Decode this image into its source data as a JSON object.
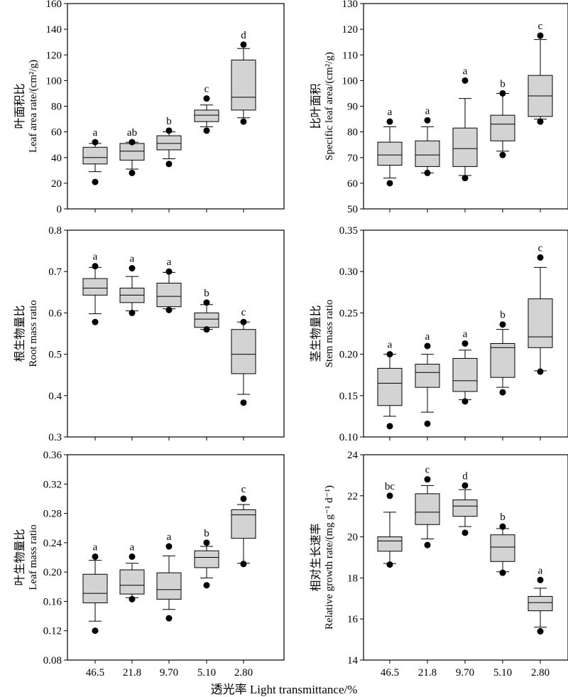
{
  "figure": {
    "x_label": "透光率 Light transmittance/%",
    "categories": [
      "46.5",
      "21.8",
      "9.70",
      "5.10",
      "2.80"
    ]
  },
  "chart_data": [
    {
      "type": "box",
      "id": "leaf-area-ratio",
      "ylabel_cn": "叶面积比",
      "ylabel_en": "Leaf area rate/(cm²/g)",
      "ylim": [
        0,
        160
      ],
      "yticks": [
        0,
        20,
        40,
        60,
        80,
        100,
        120,
        140,
        160
      ],
      "tick_labels": [
        "0",
        "20",
        "40",
        "60",
        "80",
        "100",
        "120",
        "140",
        "160"
      ],
      "categories": [
        "46.5",
        "21.8",
        "9.70",
        "5.10",
        "2.80"
      ],
      "boxes": [
        {
          "min": 29,
          "q1": 35,
          "median": 40,
          "q3": 48,
          "max": 51,
          "outliers": [
            21,
            52
          ]
        },
        {
          "min": 31,
          "q1": 38,
          "median": 45,
          "q3": 51,
          "max": 52,
          "outliers": [
            28,
            52
          ]
        },
        {
          "min": 39,
          "q1": 46,
          "median": 51,
          "q3": 57,
          "max": 60,
          "outliers": [
            35,
            61
          ]
        },
        {
          "min": 64,
          "q1": 68,
          "median": 73,
          "q3": 77,
          "max": 81,
          "outliers": [
            61,
            86
          ]
        },
        {
          "min": 71,
          "q1": 77,
          "median": 87,
          "q3": 116,
          "max": 125,
          "outliers": [
            68,
            128
          ]
        }
      ],
      "letters": [
        "a",
        "ab",
        "b",
        "c",
        "d"
      ]
    },
    {
      "type": "box",
      "id": "specific-leaf-area",
      "ylabel_cn": "比叶面积",
      "ylabel_en": "Specific leaf area/(cm²/g)",
      "ylim": [
        50,
        130
      ],
      "yticks": [
        50,
        60,
        70,
        80,
        90,
        100,
        110,
        120,
        130
      ],
      "tick_labels": [
        "50",
        "60",
        "70",
        "80",
        "90",
        "100",
        "110",
        "120",
        "130"
      ],
      "categories": [
        "46.5",
        "21.8",
        "9.70",
        "5.10",
        "2.80"
      ],
      "boxes": [
        {
          "min": 62,
          "q1": 67,
          "median": 71,
          "q3": 76,
          "max": 82,
          "outliers": [
            60,
            84
          ]
        },
        {
          "min": 64,
          "q1": 66.5,
          "median": 71,
          "q3": 76.5,
          "max": 82,
          "outliers": [
            64,
            84.5
          ]
        },
        {
          "min": 63,
          "q1": 66.5,
          "median": 73.5,
          "q3": 81.5,
          "max": 93,
          "outliers": [
            62,
            100
          ]
        },
        {
          "min": 72.5,
          "q1": 76.5,
          "median": 83,
          "q3": 86.5,
          "max": 95,
          "outliers": [
            71,
            95
          ]
        },
        {
          "min": 85,
          "q1": 86,
          "median": 94,
          "q3": 102,
          "max": 116,
          "outliers": [
            84,
            117.5
          ]
        }
      ],
      "letters": [
        "a",
        "a",
        "a",
        "b",
        "c"
      ]
    },
    {
      "type": "box",
      "id": "root-mass-ratio",
      "ylabel_cn": "根生物量比",
      "ylabel_en": "Root mass ratio",
      "ylim": [
        0.3,
        0.8
      ],
      "yticks": [
        0.3,
        0.4,
        0.5,
        0.6,
        0.7,
        0.8
      ],
      "tick_labels": [
        "0.3",
        "0.4",
        "0.5",
        "0.6",
        "0.7",
        "0.8"
      ],
      "categories": [
        "46.5",
        "21.8",
        "9.70",
        "5.10",
        "2.80"
      ],
      "boxes": [
        {
          "min": 0.598,
          "q1": 0.643,
          "median": 0.66,
          "q3": 0.683,
          "max": 0.71,
          "outliers": [
            0.578,
            0.713
          ]
        },
        {
          "min": 0.605,
          "q1": 0.625,
          "median": 0.643,
          "q3": 0.66,
          "max": 0.688,
          "outliers": [
            0.6,
            0.708
          ]
        },
        {
          "min": 0.61,
          "q1": 0.615,
          "median": 0.64,
          "q3": 0.672,
          "max": 0.698,
          "outliers": [
            0.607,
            0.7
          ]
        },
        {
          "min": 0.56,
          "q1": 0.565,
          "median": 0.585,
          "q3": 0.6,
          "max": 0.62,
          "outliers": [
            0.56,
            0.625
          ]
        },
        {
          "min": 0.403,
          "q1": 0.453,
          "median": 0.5,
          "q3": 0.56,
          "max": 0.578,
          "outliers": [
            0.383,
            0.578
          ]
        }
      ],
      "letters": [
        "a",
        "a",
        "a",
        "b",
        "c"
      ]
    },
    {
      "type": "box",
      "id": "stem-mass-ratio",
      "ylabel_cn": "茎生物量比",
      "ylabel_en": "Stem mass ratio",
      "ylim": [
        0.1,
        0.35
      ],
      "yticks": [
        0.1,
        0.15,
        0.2,
        0.25,
        0.3,
        0.35
      ],
      "tick_labels": [
        "0.10",
        "0.15",
        "0.20",
        "0.25",
        "0.30",
        "0.35"
      ],
      "categories": [
        "46.5",
        "21.8",
        "9.70",
        "5.10",
        "2.80"
      ],
      "boxes": [
        {
          "min": 0.125,
          "q1": 0.138,
          "median": 0.165,
          "q3": 0.183,
          "max": 0.2,
          "outliers": [
            0.113,
            0.2
          ]
        },
        {
          "min": 0.13,
          "q1": 0.16,
          "median": 0.178,
          "q3": 0.188,
          "max": 0.2,
          "outliers": [
            0.116,
            0.21
          ]
        },
        {
          "min": 0.145,
          "q1": 0.155,
          "median": 0.168,
          "q3": 0.195,
          "max": 0.205,
          "outliers": [
            0.143,
            0.213
          ]
        },
        {
          "min": 0.16,
          "q1": 0.172,
          "median": 0.208,
          "q3": 0.213,
          "max": 0.23,
          "outliers": [
            0.154,
            0.236
          ]
        },
        {
          "min": 0.18,
          "q1": 0.208,
          "median": 0.221,
          "q3": 0.267,
          "max": 0.305,
          "outliers": [
            0.179,
            0.317
          ]
        }
      ],
      "letters": [
        "a",
        "a",
        "a",
        "b",
        "c"
      ]
    },
    {
      "type": "box",
      "id": "leaf-mass-ratio",
      "ylabel_cn": "叶生物量比",
      "ylabel_en": "Leaf mass ratio",
      "ylim": [
        0.08,
        0.36
      ],
      "yticks": [
        0.08,
        0.12,
        0.16,
        0.2,
        0.24,
        0.28,
        0.32,
        0.36
      ],
      "tick_labels": [
        "0.08",
        "0.12",
        "0.16",
        "0.20",
        "0.24",
        "0.28",
        "0.32",
        "0.36"
      ],
      "categories": [
        "46.5",
        "21.8",
        "9.70",
        "5.10",
        "2.80"
      ],
      "boxes": [
        {
          "min": 0.133,
          "q1": 0.158,
          "median": 0.171,
          "q3": 0.197,
          "max": 0.216,
          "outliers": [
            0.12,
            0.221
          ]
        },
        {
          "min": 0.165,
          "q1": 0.17,
          "median": 0.182,
          "q3": 0.203,
          "max": 0.212,
          "outliers": [
            0.163,
            0.221
          ]
        },
        {
          "min": 0.149,
          "q1": 0.163,
          "median": 0.176,
          "q3": 0.199,
          "max": 0.222,
          "outliers": [
            0.137,
            0.235
          ]
        },
        {
          "min": 0.192,
          "q1": 0.206,
          "median": 0.22,
          "q3": 0.229,
          "max": 0.235,
          "outliers": [
            0.182,
            0.24
          ]
        },
        {
          "min": 0.212,
          "q1": 0.246,
          "median": 0.278,
          "q3": 0.285,
          "max": 0.292,
          "outliers": [
            0.211,
            0.3
          ]
        }
      ],
      "letters": [
        "a",
        "a",
        "a",
        "b",
        "c"
      ]
    },
    {
      "type": "box",
      "id": "relative-growth-rate",
      "ylabel_cn": "相对生长速率",
      "ylabel_en": "Relative growth rate/(mg g⁻¹ d⁻¹)",
      "ylim": [
        14,
        24
      ],
      "yticks": [
        14,
        16,
        18,
        20,
        22,
        24
      ],
      "tick_labels": [
        "14",
        "16",
        "18",
        "20",
        "22",
        "24"
      ],
      "categories": [
        "46.5",
        "21.8",
        "9.70",
        "5.10",
        "2.80"
      ],
      "boxes": [
        {
          "min": 18.7,
          "q1": 19.3,
          "median": 19.8,
          "q3": 20.0,
          "max": 21.2,
          "outliers": [
            18.65,
            22.0
          ]
        },
        {
          "min": 19.9,
          "q1": 20.6,
          "median": 21.2,
          "q3": 22.1,
          "max": 22.5,
          "outliers": [
            19.6,
            22.8
          ]
        },
        {
          "min": 20.5,
          "q1": 21.0,
          "median": 21.5,
          "q3": 21.8,
          "max": 22.3,
          "outliers": [
            20.2,
            22.5
          ]
        },
        {
          "min": 18.3,
          "q1": 18.8,
          "median": 19.5,
          "q3": 20.1,
          "max": 20.4,
          "outliers": [
            18.25,
            20.5
          ]
        },
        {
          "min": 15.6,
          "q1": 16.4,
          "median": 16.8,
          "q3": 17.1,
          "max": 17.5,
          "outliers": [
            15.4,
            17.9
          ]
        }
      ],
      "letters": [
        "bc",
        "c",
        "d",
        "b",
        "a"
      ]
    }
  ]
}
